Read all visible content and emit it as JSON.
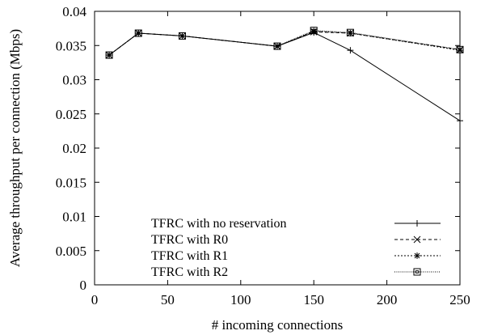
{
  "chart_data": {
    "type": "line",
    "title": "",
    "xlabel": "# incoming connections",
    "ylabel": "Average throughput per connection (Mbps)",
    "xlim": [
      0,
      250
    ],
    "ylim": [
      0,
      0.04
    ],
    "x_ticks": [
      "0",
      "50",
      "100",
      "150",
      "200",
      "250"
    ],
    "y_ticks": [
      "0",
      "0.005",
      "0.01",
      "0.015",
      "0.02",
      "0.025",
      "0.03",
      "0.035",
      "0.04"
    ],
    "grid": false,
    "legend_position": "bottom-left",
    "series": [
      {
        "name": "TFRC with no reservation",
        "marker": "plus",
        "dash": "solid",
        "x": [
          10,
          30,
          60,
          125,
          150,
          175,
          250
        ],
        "y": [
          0.0336,
          0.0368,
          0.0364,
          0.0349,
          0.0369,
          0.0343,
          0.024
        ]
      },
      {
        "name": "TFRC with R0",
        "marker": "cross",
        "dash": "dashed",
        "x": [
          10,
          30,
          60,
          125,
          150,
          175,
          250
        ],
        "y": [
          0.0336,
          0.0368,
          0.0364,
          0.0349,
          0.037,
          0.0368,
          0.0344
        ]
      },
      {
        "name": "TFRC with R1",
        "marker": "star",
        "dash": "dotted",
        "x": [
          10,
          30,
          60,
          125,
          150,
          175,
          250
        ],
        "y": [
          0.0336,
          0.0368,
          0.0364,
          0.0349,
          0.0371,
          0.0368,
          0.0343
        ]
      },
      {
        "name": "TFRC with R2",
        "marker": "square",
        "dash": "fine-dotted",
        "x": [
          10,
          30,
          60,
          125,
          150,
          175,
          250
        ],
        "y": [
          0.0336,
          0.0368,
          0.0364,
          0.0349,
          0.0372,
          0.0369,
          0.0344
        ]
      }
    ]
  }
}
